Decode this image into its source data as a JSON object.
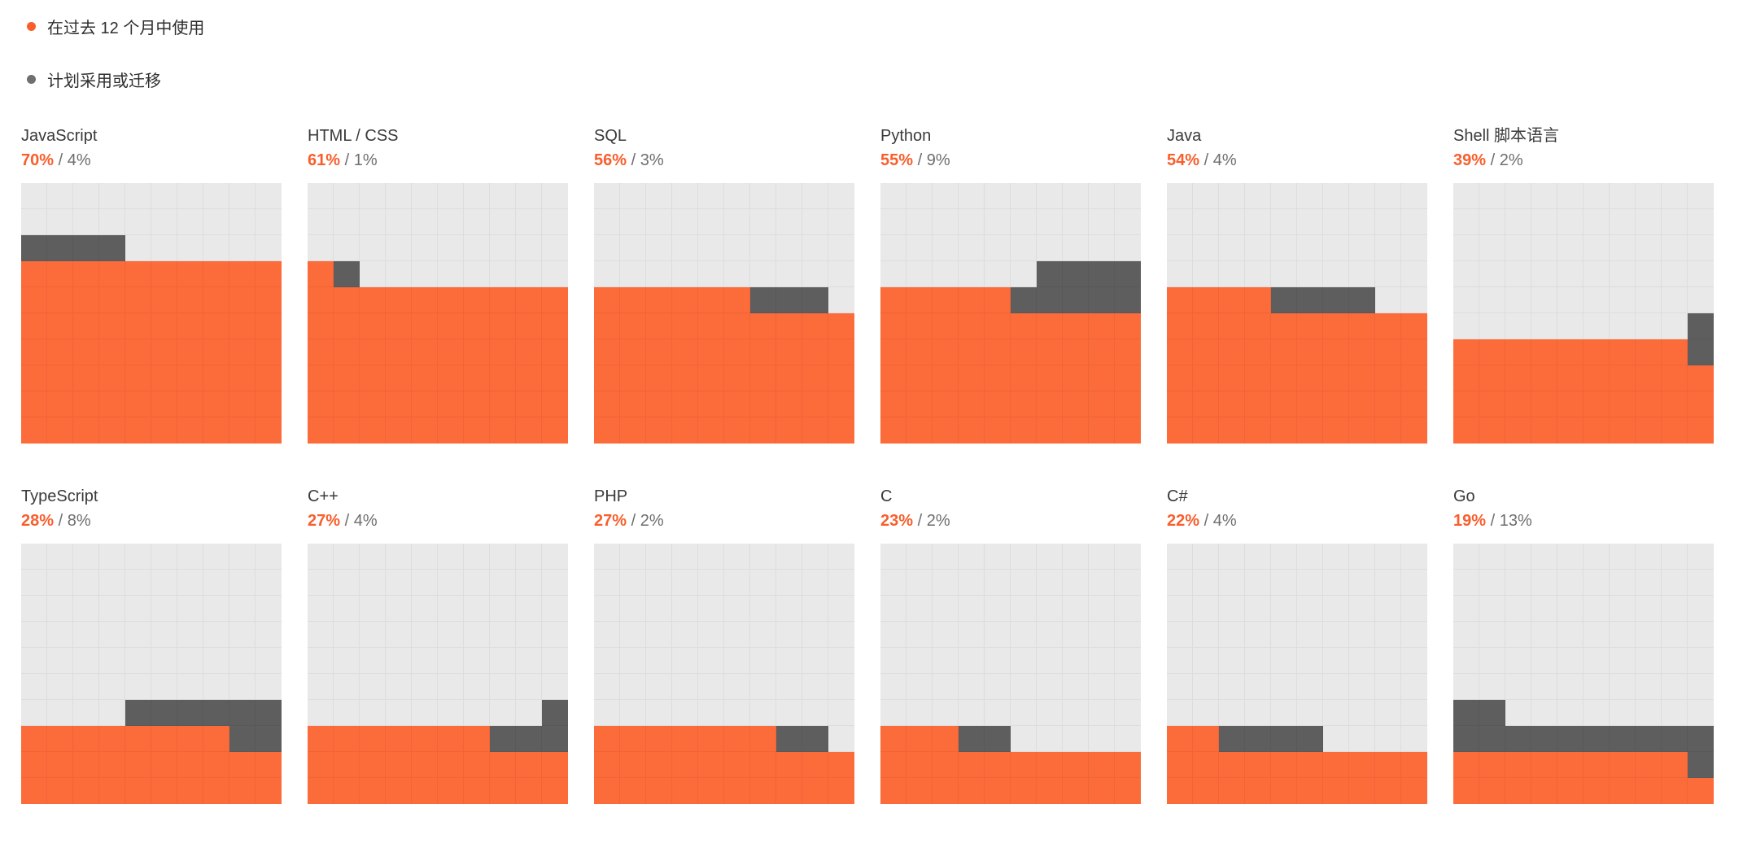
{
  "legend": {
    "items": [
      {
        "id": "used",
        "label": "在过去 12 个月中使用"
      },
      {
        "id": "plan",
        "label": "计划采用或迁移"
      }
    ]
  },
  "value_separator": " / ",
  "colors": {
    "accent": "#F95E2C",
    "cell_used": "#FC6B3A",
    "cell_plan": "#5E5E5E",
    "cell_empty": "#E9E9E9",
    "plan_dot": "#6F6F6F",
    "legend_text": "#2E2E2E",
    "title_text": "#3A3A3A",
    "secondary_text": "#6E6E6E"
  },
  "charts": [
    {
      "name": "JavaScript",
      "used_pct": 70,
      "plan_pct": 4,
      "used_label": "70%",
      "plan_label": "4%"
    },
    {
      "name": "HTML / CSS",
      "used_pct": 61,
      "plan_pct": 1,
      "used_label": "61%",
      "plan_label": "1%"
    },
    {
      "name": "SQL",
      "used_pct": 56,
      "plan_pct": 3,
      "used_label": "56%",
      "plan_label": "3%"
    },
    {
      "name": "Python",
      "used_pct": 55,
      "plan_pct": 9,
      "used_label": "55%",
      "plan_label": "9%"
    },
    {
      "name": "Java",
      "used_pct": 54,
      "plan_pct": 4,
      "used_label": "54%",
      "plan_label": "4%"
    },
    {
      "name": "Shell 脚本语言",
      "used_pct": 39,
      "plan_pct": 2,
      "used_label": "39%",
      "plan_label": "2%"
    },
    {
      "name": "TypeScript",
      "used_pct": 28,
      "plan_pct": 8,
      "used_label": "28%",
      "plan_label": "8%"
    },
    {
      "name": "C++",
      "used_pct": 27,
      "plan_pct": 4,
      "used_label": "27%",
      "plan_label": "4%"
    },
    {
      "name": "PHP",
      "used_pct": 27,
      "plan_pct": 2,
      "used_label": "27%",
      "plan_label": "2%"
    },
    {
      "name": "C",
      "used_pct": 23,
      "plan_pct": 2,
      "used_label": "23%",
      "plan_label": "2%"
    },
    {
      "name": "C#",
      "used_pct": 22,
      "plan_pct": 4,
      "used_label": "22%",
      "plan_label": "4%"
    },
    {
      "name": "Go",
      "used_pct": 19,
      "plan_pct": 13,
      "used_label": "19%",
      "plan_label": "13%"
    }
  ],
  "chart_data": {
    "type": "waffle",
    "grid": "10x10 cells per chart, 1 cell = 1%",
    "fill_rule": "used fills bottom-up rows left-to-right; plan cells continue after used, overflow rows snake in alternating direction",
    "categories": [
      "JavaScript",
      "HTML / CSS",
      "SQL",
      "Python",
      "Java",
      "Shell 脚本语言",
      "TypeScript",
      "C++",
      "PHP",
      "C",
      "C#",
      "Go"
    ],
    "series": [
      {
        "name": "在过去 12 个月中使用",
        "color": "#FC6B3A",
        "values": [
          70,
          61,
          56,
          55,
          54,
          39,
          28,
          27,
          27,
          23,
          22,
          19
        ]
      },
      {
        "name": "计划采用或迁移",
        "color": "#5E5E5E",
        "values": [
          4,
          1,
          3,
          9,
          4,
          2,
          8,
          4,
          2,
          2,
          4,
          13
        ]
      }
    ],
    "legend_position": "top-left",
    "layout": "6 columns x 2 rows of waffle charts"
  }
}
